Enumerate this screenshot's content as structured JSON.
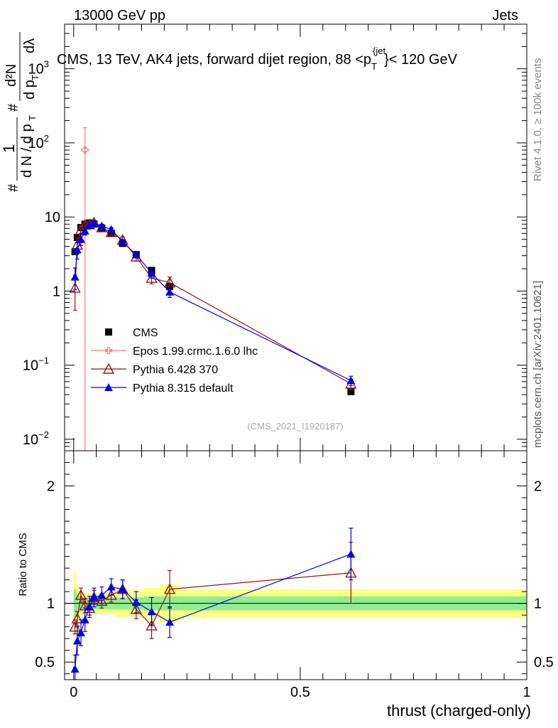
{
  "header": {
    "energy_label": "13000 GeV pp",
    "category_label": "Jets"
  },
  "side": {
    "rivet_label": "Rivet 4.1.0, ≥ 100k events",
    "source_label": "mcplots.cern.ch [arXiv:2401.10621]"
  },
  "chart_data": [
    {
      "type": "scatter",
      "id": "main",
      "title": "CMS, 13 TeV, AK4 jets, forward dijet region, 88 <p_T^{jet}< 120 GeV",
      "ylabel": "1/(dN/dp_T) d²N/(dp_T dλ)",
      "ylabel_parts": {
        "hash": "#",
        "one": "1",
        "den": "d N / d p",
        "sub": "T",
        "num": "d²N",
        "frac_den": "d p",
        "lambda": "dλ"
      },
      "xlabel": "thrust (charged-only)",
      "yscale": "log",
      "xlim": [
        -0.02,
        1.0
      ],
      "ylim": [
        0.007,
        4000
      ],
      "ytick_values": [
        0.01,
        0.1,
        1,
        10,
        100,
        1000
      ],
      "ytick_labels": [
        {
          "base": "10",
          "exp": "−2"
        },
        {
          "base": "10",
          "exp": "−1"
        },
        {
          "base": "1",
          "exp": ""
        },
        {
          "base": "10",
          "exp": ""
        },
        {
          "base": "10",
          "exp": "2"
        },
        {
          "base": "10",
          "exp": "3"
        }
      ],
      "watermark": "(CMS_2021_I1920187)",
      "legend_position": "center-left",
      "series": [
        {
          "name": "CMS",
          "color": "#000000",
          "marker": "square",
          "x": [
            0.003,
            0.008,
            0.016,
            0.025,
            0.035,
            0.045,
            0.062,
            0.083,
            0.108,
            0.138,
            0.172,
            0.212,
            0.612
          ],
          "y": [
            3.4,
            5.3,
            7.2,
            8.0,
            8.3,
            8.0,
            7.1,
            6.0,
            4.4,
            3.1,
            1.9,
            1.15,
            0.044
          ],
          "err": [
            0.3,
            0.4,
            0.4,
            0.4,
            0.4,
            0.4,
            0.35,
            0.3,
            0.25,
            0.2,
            0.12,
            0.08,
            0.004
          ]
        },
        {
          "name": "Epos 1.99.crmc.1.6.0 lhc",
          "color": "#f08080",
          "marker": "open-cross",
          "x": [
            0.025
          ],
          "y": [
            80
          ],
          "err_low": [
            80
          ],
          "err_high": [
            80
          ]
        },
        {
          "name": "Pythia 6.428 370",
          "color": "#8b1a1a",
          "marker": "open-triangle",
          "x": [
            0.003,
            0.008,
            0.016,
            0.025,
            0.035,
            0.045,
            0.062,
            0.083,
            0.108,
            0.138,
            0.172,
            0.212,
            0.612
          ],
          "y": [
            1.1,
            4.2,
            6.7,
            7.8,
            7.9,
            8.4,
            7.2,
            6.2,
            4.9,
            2.9,
            1.5,
            1.3,
            0.056
          ],
          "err": [
            0.55,
            1.0,
            0.9,
            0.8,
            0.7,
            0.7,
            0.6,
            0.5,
            0.5,
            0.35,
            0.25,
            0.25,
            0.009
          ]
        },
        {
          "name": "Pythia 8.315 default",
          "color": "#0000e6",
          "marker": "triangle",
          "x": [
            0.003,
            0.008,
            0.016,
            0.025,
            0.035,
            0.045,
            0.062,
            0.083,
            0.108,
            0.138,
            0.172,
            0.212,
            0.612
          ],
          "y": [
            1.55,
            3.6,
            5.0,
            6.5,
            7.7,
            8.2,
            7.5,
            6.8,
            4.6,
            3.1,
            1.75,
            0.97,
            0.062
          ],
          "err": [
            0.5,
            0.9,
            0.9,
            0.8,
            0.7,
            0.6,
            0.5,
            0.4,
            0.35,
            0.3,
            0.25,
            0.15,
            0.009
          ]
        }
      ]
    },
    {
      "type": "scatter",
      "id": "ratio",
      "ylabel": "Ratio to CMS",
      "xlabel": "thrust (charged-only)",
      "xlim": [
        -0.02,
        1.0
      ],
      "ylim": [
        0.35,
        2.3
      ],
      "ytick_values": [
        0.5,
        1,
        2
      ],
      "ytick_labels": [
        "0.5",
        "1",
        "2"
      ],
      "xtick_values": [
        0,
        0.5,
        1
      ],
      "xtick_labels": [
        "0",
        "0.5",
        "1"
      ],
      "bands": [
        {
          "name": "stat",
          "color": "#90ee90",
          "x_edges": [
            0.0,
            0.006,
            0.012,
            0.02,
            0.03,
            0.04,
            0.053,
            0.072,
            0.095,
            0.122,
            0.155,
            0.19,
            0.235,
            1.0
          ],
          "half_width": [
            0.12,
            0.08,
            0.06,
            0.05,
            0.05,
            0.05,
            0.05,
            0.05,
            0.05,
            0.05,
            0.06,
            0.06,
            0.06
          ]
        },
        {
          "name": "total",
          "color": "#ffff80",
          "x_edges": [
            0.0,
            0.006,
            0.012,
            0.02,
            0.03,
            0.04,
            0.053,
            0.072,
            0.095,
            0.122,
            0.155,
            0.19,
            0.235,
            1.0
          ],
          "half_width": [
            0.28,
            0.15,
            0.1,
            0.09,
            0.09,
            0.09,
            0.09,
            0.09,
            0.12,
            0.11,
            0.13,
            0.16,
            0.12
          ]
        }
      ],
      "series": [
        {
          "name": "Pythia 6.428 370",
          "color": "#8b1a1a",
          "marker": "open-triangle",
          "x": [
            0.003,
            0.008,
            0.016,
            0.025,
            0.035,
            0.045,
            0.062,
            0.083,
            0.108,
            0.138,
            0.172,
            0.212,
            0.612
          ],
          "y": [
            0.8,
            0.87,
            1.07,
            0.98,
            0.96,
            1.05,
            1.02,
            1.07,
            1.12,
            0.95,
            0.81,
            1.12,
            1.26
          ],
          "err": [
            0.06,
            0.06,
            0.06,
            0.06,
            0.06,
            0.06,
            0.06,
            0.06,
            0.08,
            0.08,
            0.11,
            0.16,
            0.26
          ]
        },
        {
          "name": "Pythia 8.315 default",
          "color": "#0000e6",
          "marker": "triangle",
          "x": [
            0.003,
            0.008,
            0.016,
            0.025,
            0.035,
            0.045,
            0.062,
            0.083,
            0.108,
            0.138,
            0.172,
            0.212,
            0.612
          ],
          "y": [
            0.44,
            0.68,
            0.75,
            0.86,
            0.97,
            1.05,
            1.07,
            1.14,
            1.12,
            1.01,
            0.93,
            0.84,
            1.42
          ],
          "err": [
            0.12,
            0.12,
            0.11,
            0.1,
            0.09,
            0.08,
            0.07,
            0.07,
            0.08,
            0.09,
            0.12,
            0.13,
            0.22
          ]
        }
      ]
    }
  ]
}
